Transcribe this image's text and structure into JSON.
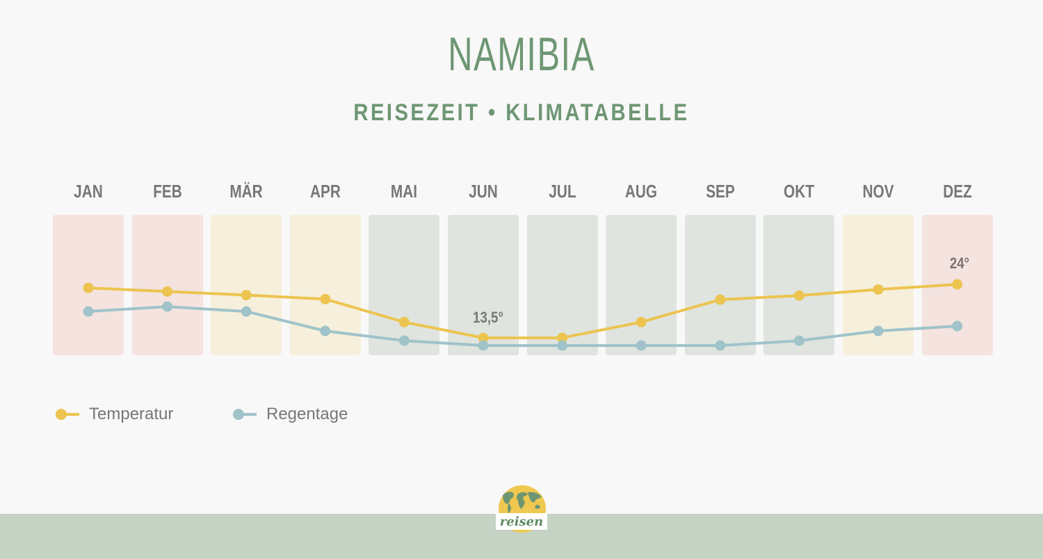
{
  "header": {
    "title": "NAMIBIA",
    "subtitle": "REISEZEIT • KLIMATABELLE"
  },
  "colors": {
    "title": "#6e9673",
    "temperature": "#ecc44f",
    "rain": "#9fc3c9",
    "season_hot": "#f4e3de",
    "season_mid": "#f6efdb",
    "season_best": "#dfe4df",
    "footer": "#c4d3c4"
  },
  "chart_data": {
    "type": "line",
    "title": "NAMIBIA – Reisezeit • Klimatabelle",
    "categories": [
      "JAN",
      "FEB",
      "MÄR",
      "APR",
      "MAI",
      "JUN",
      "JUL",
      "AUG",
      "SEP",
      "OKT",
      "NOV",
      "DEZ"
    ],
    "series": [
      {
        "name": "Temperatur",
        "unit": "°C",
        "color": "#ecc44f",
        "values": [
          23.3,
          22.6,
          21.9,
          21.1,
          16.6,
          13.5,
          13.5,
          16.6,
          21.0,
          21.8,
          23.0,
          24.0
        ]
      },
      {
        "name": "Regentage",
        "unit": "Tage",
        "color": "#9fc3c9",
        "values": [
          7,
          8,
          7,
          3,
          1,
          0,
          0,
          0,
          0,
          1,
          3,
          4
        ]
      }
    ],
    "season_shading": [
      "hot",
      "hot",
      "mid",
      "mid",
      "best",
      "best",
      "best",
      "best",
      "best",
      "best",
      "mid",
      "hot"
    ],
    "annotations": [
      {
        "month": "JUN",
        "text": "13,5°"
      },
      {
        "month": "DEZ",
        "text": "24°"
      }
    ],
    "legend_position": "bottom-left",
    "grid": false,
    "xlabel": "",
    "ylabel": ""
  },
  "legend": {
    "items": [
      {
        "label": "Temperatur"
      },
      {
        "label": "Regentage"
      }
    ]
  },
  "annotations": {
    "min_label": "13,5°",
    "max_label": "24°"
  },
  "logo": {
    "text": "reisen",
    "icon": "globe-icon"
  }
}
